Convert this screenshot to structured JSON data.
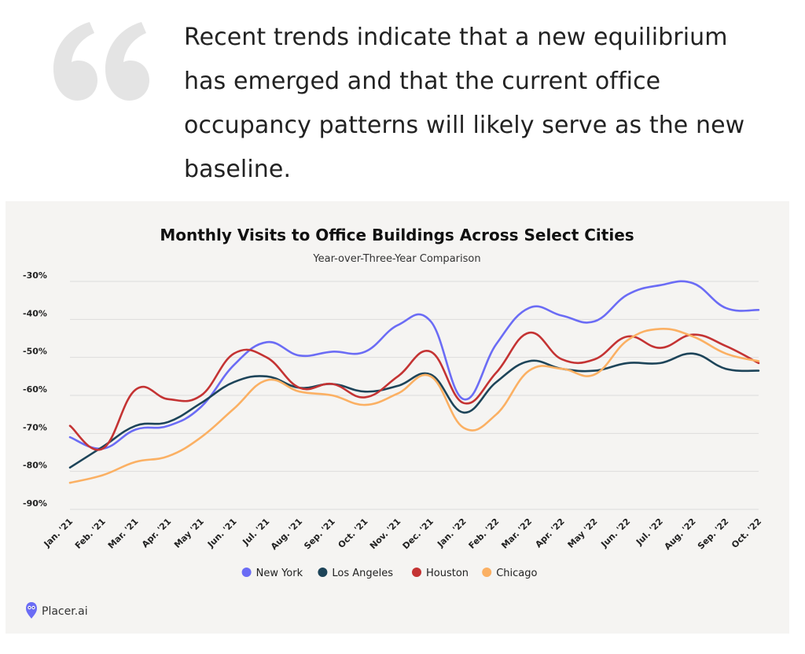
{
  "quote": {
    "text": "Recent trends indicate that a new equilibrium has emerged and that the current office occupancy patterns will likely serve as the new baseline.",
    "lines": [
      "Recent trends indicate that a new equilibrium",
      "has emerged and that the current office",
      "occupancy patterns will likely serve as the new",
      "baseline."
    ]
  },
  "colors": {
    "quote_mark": "#e4e4e4",
    "card_bg": "#f5f4f2",
    "grid": "#dcdcdc",
    "new_york": "#6b6cf5",
    "los_angeles": "#1d4459",
    "houston": "#c43333",
    "chicago": "#fbb063"
  },
  "logo": {
    "text": "Placer.ai"
  },
  "chart_data": {
    "type": "line",
    "title": "Monthly Visits to Office Buildings Across Select Cities",
    "subtitle": "Year-over-Three-Year Comparison",
    "xlabel": "",
    "ylabel": "",
    "ylim": [
      -90,
      -30
    ],
    "y_ticks": [
      -30,
      -40,
      -50,
      -60,
      -70,
      -80,
      -90
    ],
    "y_tick_labels": [
      "-30%",
      "-40%",
      "-50%",
      "-60%",
      "-70%",
      "-80%",
      "-90%"
    ],
    "grid": true,
    "legend_position": "bottom-center",
    "categories": [
      "Jan. '21",
      "Feb. '21",
      "Mar. '21",
      "Apr. '21",
      "May '21",
      "Jun. '21",
      "Jul. '21",
      "Aug. '21",
      "Sep. '21",
      "Oct. '21",
      "Nov. '21",
      "Dec. '21",
      "Jan. '22",
      "Feb. '22",
      "Mar. '22",
      "Apr. '22",
      "May '22",
      "Jun. '22",
      "Jul. '22",
      "Aug. '22",
      "Sep. '22",
      "Oct. '22"
    ],
    "series": [
      {
        "name": "New York",
        "color": "#6b6cf5",
        "values": [
          -71,
          -74,
          -69,
          -68,
          -63,
          -52,
          -46,
          -49.5,
          -48.5,
          -48.5,
          -41.5,
          -40.5,
          -61,
          -46.5,
          -37,
          -39,
          -40.5,
          -33.5,
          -31,
          -30.5,
          -37,
          -37.5
        ]
      },
      {
        "name": "Los Angeles",
        "color": "#1d4459",
        "values": [
          -79,
          -73.5,
          -68,
          -67,
          -62,
          -56.5,
          -55,
          -58,
          -57,
          -59,
          -57.5,
          -54.5,
          -64.5,
          -56.5,
          -51,
          -53,
          -53.5,
          -51.5,
          -51.5,
          -49,
          -53,
          -53.5
        ]
      },
      {
        "name": "Houston",
        "color": "#c43333",
        "values": [
          -68,
          -74,
          -58.5,
          -61,
          -60,
          -49,
          -50,
          -58,
          -57,
          -60.5,
          -55,
          -48.5,
          -62,
          -54,
          -43.5,
          -50.5,
          -50.5,
          -44.5,
          -47.5,
          -44,
          -47,
          -51.5
        ]
      },
      {
        "name": "Chicago",
        "color": "#fbb063",
        "values": [
          -83,
          -81,
          -77.5,
          -76,
          -71,
          -63.5,
          -56,
          -59,
          -60,
          -62.5,
          -59.5,
          -55,
          -68.5,
          -65,
          -53.5,
          -53,
          -54.5,
          -45.5,
          -42.5,
          -44.5,
          -49,
          -51
        ]
      }
    ]
  }
}
